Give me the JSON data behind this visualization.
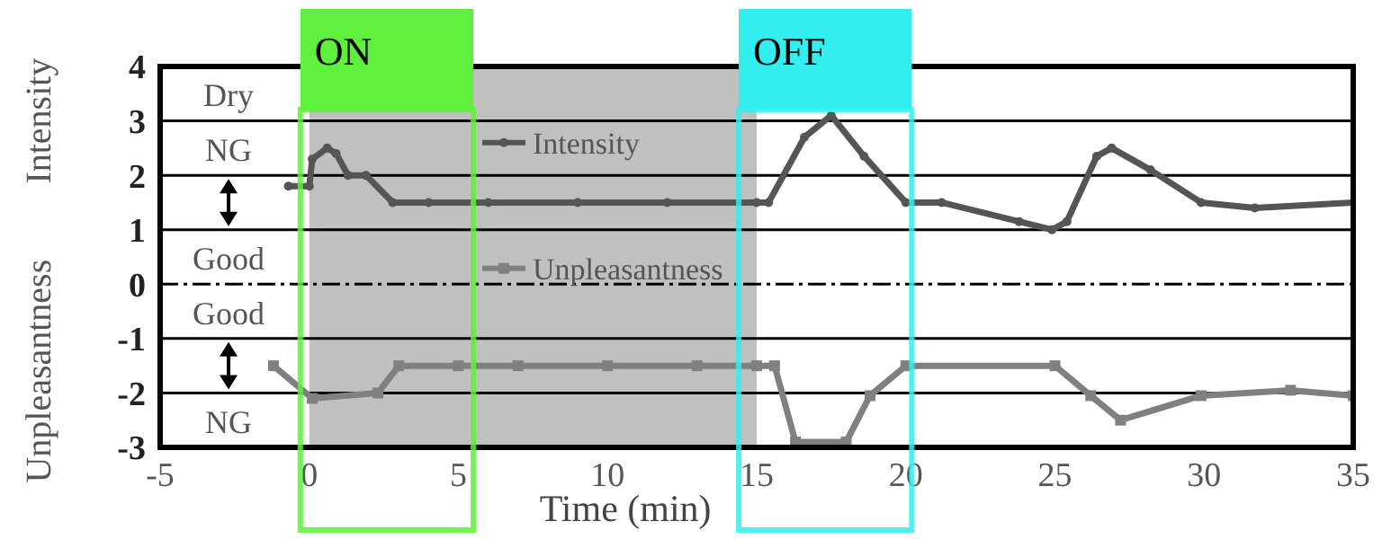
{
  "chart_data": {
    "type": "line",
    "xlabel": "Time (min)",
    "ylabel": "Intensity",
    "xlim": [
      -5,
      35
    ],
    "xticks": [
      -5,
      0,
      5,
      10,
      15,
      20,
      25,
      30,
      35
    ],
    "ylim": [
      -3,
      4
    ],
    "yticks": [
      4,
      3,
      2,
      1,
      0,
      -1,
      -2,
      -3
    ],
    "grid": "y",
    "legend": "top",
    "series": [
      {
        "name": "Intensity",
        "color": "#555555",
        "marker": "circle",
        "x": [
          -0.7,
          0.0,
          0.1,
          0.6,
          0.9,
          1.3,
          1.9,
          2.8,
          4,
          6,
          9,
          12,
          15,
          15.4,
          16.6,
          17.5,
          18.6,
          20,
          21.2,
          23.8,
          24.9,
          25.4,
          26.4,
          26.9,
          28.2,
          29.9,
          31.7,
          35
        ],
        "values": [
          1.8,
          1.8,
          2.3,
          2.5,
          2.4,
          2.0,
          2.0,
          1.5,
          1.5,
          1.5,
          1.5,
          1.5,
          1.5,
          1.5,
          2.7,
          3.1,
          2.35,
          1.5,
          1.5,
          1.15,
          1.0,
          1.15,
          2.35,
          2.5,
          2.1,
          1.5,
          1.4,
          1.5
        ]
      },
      {
        "name": "Unpleasantness",
        "color": "#808080",
        "marker": "square",
        "x": [
          -1.2,
          0.1,
          2.3,
          3.0,
          5,
          7,
          10,
          13,
          15,
          15.6,
          16.3,
          18,
          18.8,
          20,
          25,
          26.2,
          27.2,
          29.9,
          32.9,
          35
        ],
        "values": [
          -1.5,
          -2.1,
          -2.0,
          -1.5,
          -1.5,
          -1.5,
          -1.5,
          -1.5,
          -1.5,
          -1.5,
          -2.9,
          -2.9,
          -2.05,
          -1.5,
          -1.5,
          -2.05,
          -2.5,
          -2.05,
          -1.95,
          -2.05
        ]
      }
    ],
    "ref_lines": [
      {
        "axis": "y",
        "value": 0,
        "line_style": "dashed",
        "color": "#000000"
      }
    ],
    "bands": [
      {
        "axis": "x",
        "from": 0,
        "to": 15,
        "color": "#c0c0c0"
      },
      {
        "axis": "x",
        "from": -0.3,
        "to": 5.5,
        "label": "ON",
        "color": "#5ef03c"
      },
      {
        "axis": "x",
        "from": 14.4,
        "to": 20.2,
        "label": "OFF",
        "color": "#33eeee"
      }
    ],
    "annotations": [
      "Unpleasantness",
      "Dry",
      "NG",
      "Good",
      "Good",
      "NG"
    ]
  }
}
